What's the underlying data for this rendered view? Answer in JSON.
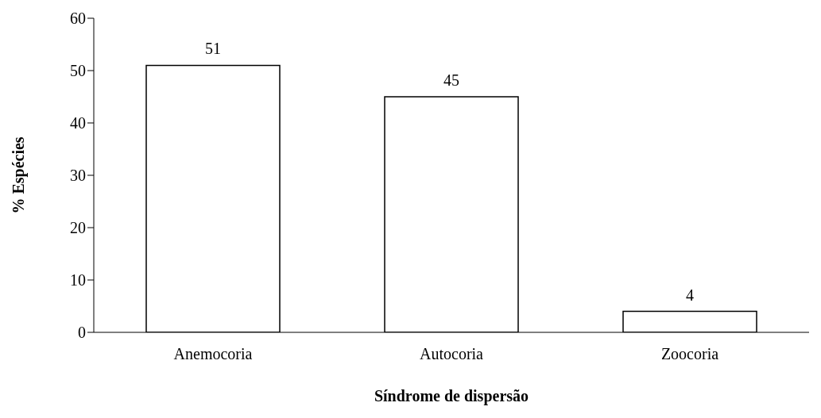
{
  "chart_data": {
    "type": "bar",
    "xlabel": "Síndrome de dispersão",
    "ylabel": "% Espécies",
    "categories": [
      "Anemocoria",
      "Autocoria",
      "Zoocoria"
    ],
    "values": [
      51,
      45,
      4
    ],
    "color": "#ffffff",
    "ylim": [
      0,
      60
    ],
    "yticks": [
      0,
      10,
      20,
      30,
      40,
      50,
      60
    ],
    "data_labels": true,
    "grid": false,
    "legend": false
  }
}
